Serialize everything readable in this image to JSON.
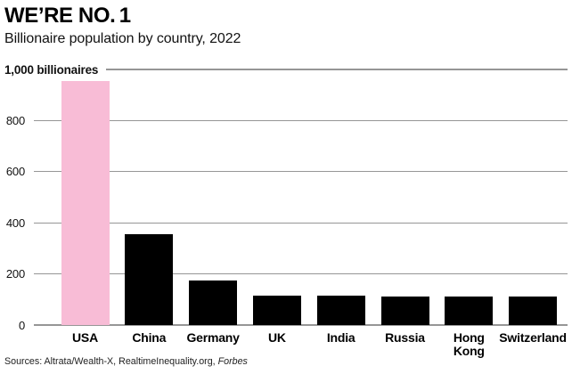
{
  "header": {
    "title": "WE’RE NO. 1",
    "subtitle": "Billionaire population by country, 2022"
  },
  "footer": {
    "sources_prefix": "Sources: Altrata/Wealth-X, RealtimeInequality.org, ",
    "sources_italic": "Forbes"
  },
  "colors": {
    "highlight_pink": "#f8bcd6",
    "bar_black": "#000000",
    "gridline_gray": "#969696",
    "text_black": "#111111"
  },
  "chart_data": {
    "type": "bar",
    "title": "WE'RE NO. 1",
    "subtitle": "Billionaire population by country, 2022",
    "categories": [
      "USA",
      "China",
      "Germany",
      "UK",
      "India",
      "Russia",
      "Hong Kong",
      "Switzerland"
    ],
    "values": [
      955,
      357,
      173,
      115,
      114,
      112,
      112,
      110
    ],
    "highlighted_category": "USA",
    "highlight_color": "#f8bcd6",
    "bar_color": "#000000",
    "ylabel_top_tick": "1,000 billionaires",
    "ylim": [
      0,
      1000
    ],
    "yticks": [
      {
        "value": 1000,
        "label": "1,000 billionaires"
      },
      {
        "value": 800,
        "label": "800"
      },
      {
        "value": 600,
        "label": "600"
      },
      {
        "value": 400,
        "label": "400"
      },
      {
        "value": 200,
        "label": "200"
      },
      {
        "value": 0,
        "label": "0"
      }
    ],
    "grid": "horizontal-only",
    "legend": "none"
  }
}
